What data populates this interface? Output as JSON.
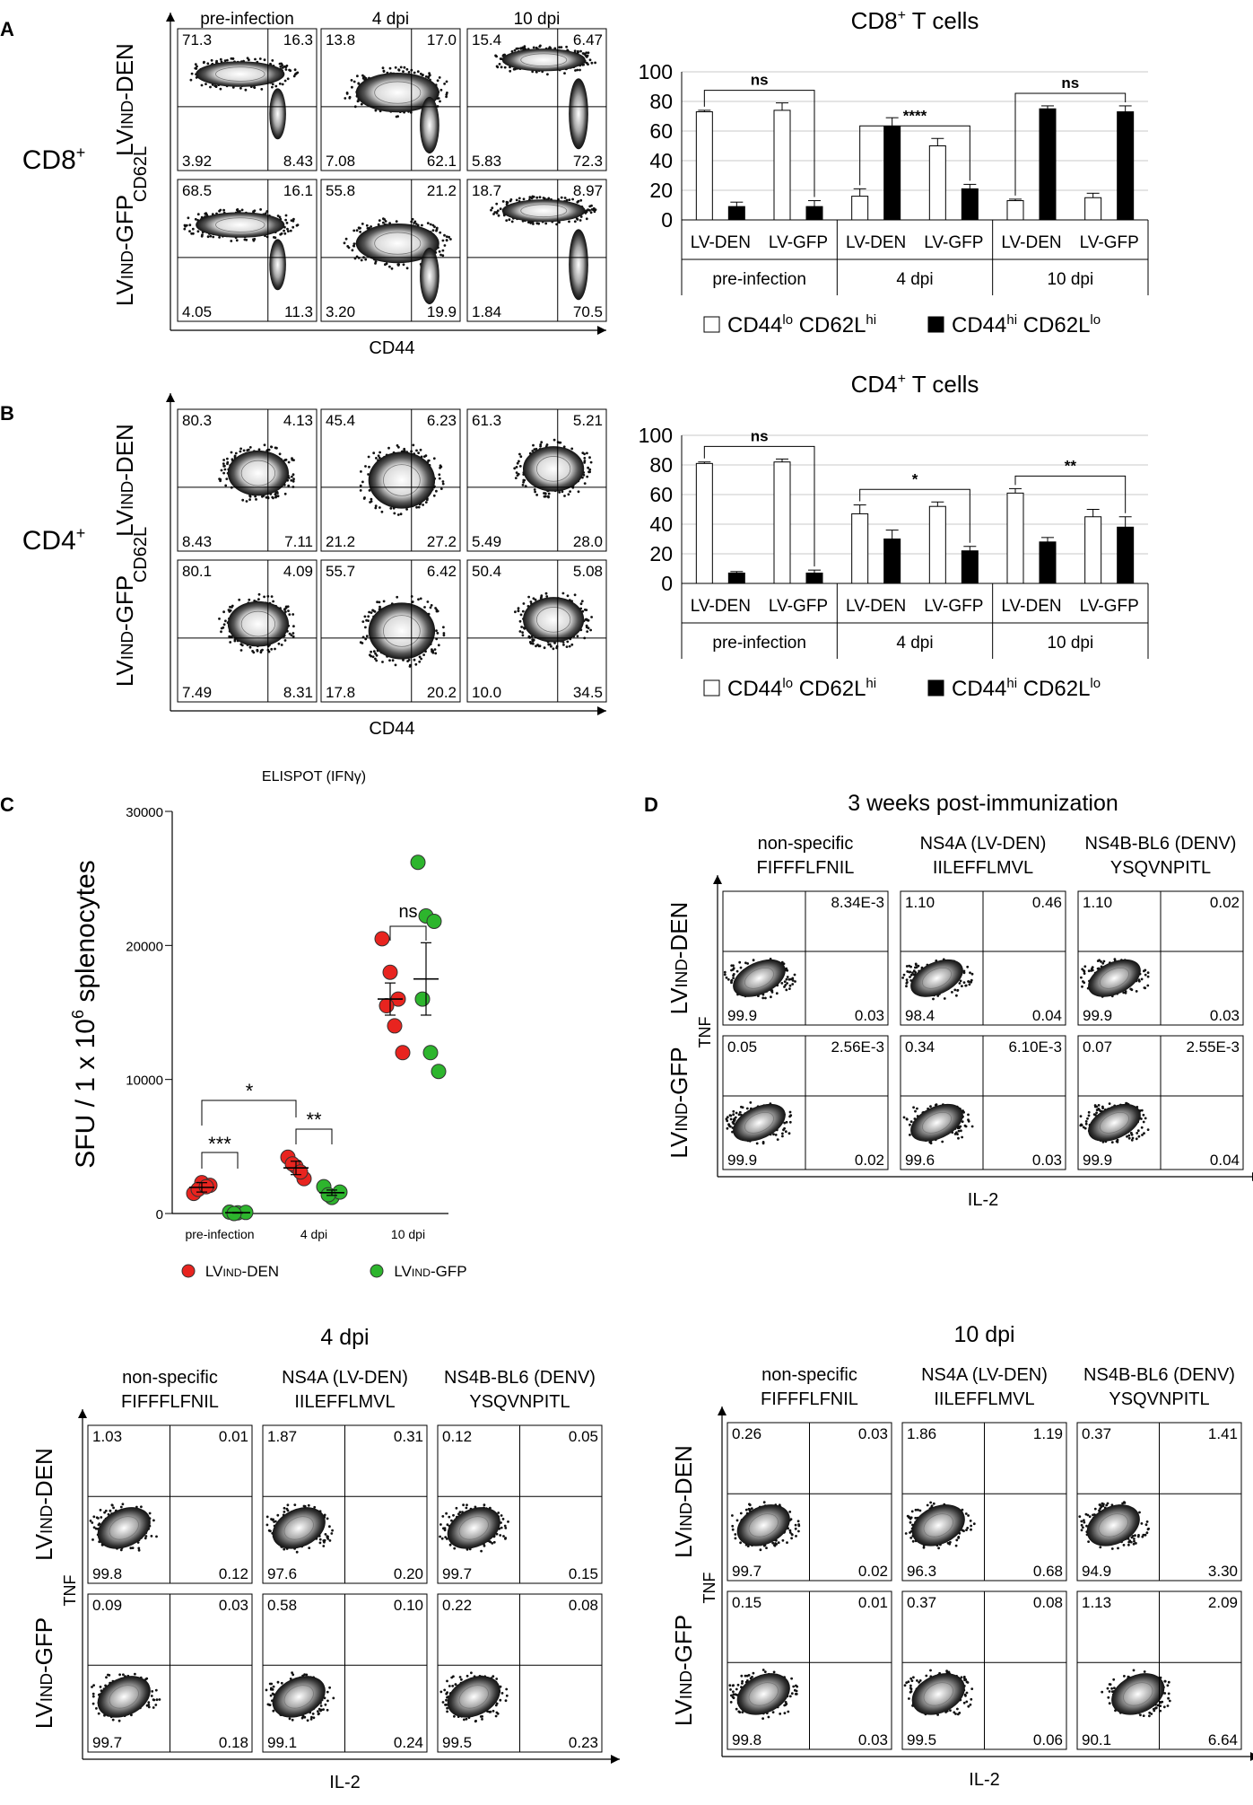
{
  "panel_letters": [
    "A",
    "B",
    "C",
    "D"
  ],
  "flow_common": {
    "cd62l_label": "CD62L",
    "cd44_label": "CD44",
    "tnf_label": "TNF",
    "il2_label": "IL-2",
    "lv_den_label": "LVIND-DEN",
    "lv_gfp_label": "LVIND-GFP"
  },
  "panel_a": {
    "side_label": "CD8+",
    "columns": [
      "pre-infection",
      "4 dpi",
      "10 dpi"
    ],
    "rows": [
      {
        "label": "LVIND-DEN",
        "quads": [
          [
            "71.3",
            "16.3",
            "3.92",
            "8.43"
          ],
          [
            "13.8",
            "17.0",
            "7.08",
            "62.1"
          ],
          [
            "15.4",
            "6.47",
            "5.83",
            "72.3"
          ]
        ]
      },
      {
        "label": "LVIND-GFP",
        "quads": [
          [
            "68.5",
            "16.1",
            "4.05",
            "11.3"
          ],
          [
            "55.8",
            "21.2",
            "3.20",
            "19.9"
          ],
          [
            "18.7",
            "8.97",
            "1.84",
            "70.5"
          ]
        ]
      }
    ]
  },
  "panel_b": {
    "side_label": "CD4+",
    "rows": [
      {
        "label": "LVIND-DEN",
        "quads": [
          [
            "80.3",
            "4.13",
            "8.43",
            "7.11"
          ],
          [
            "45.4",
            "6.23",
            "21.2",
            "27.2"
          ],
          [
            "61.3",
            "5.21",
            "5.49",
            "28.0"
          ]
        ]
      },
      {
        "label": "LVIND-GFP",
        "quads": [
          [
            "80.1",
            "4.09",
            "7.49",
            "8.31"
          ],
          [
            "55.7",
            "6.42",
            "17.8",
            "20.2"
          ],
          [
            "50.4",
            "5.08",
            "10.0",
            "34.5"
          ]
        ]
      }
    ]
  },
  "panel_d_top": {
    "title": "3 weeks post-immunization",
    "columns": [
      [
        "non-specific",
        "FIFFFLFNIL"
      ],
      [
        "NS4A (LV-DEN)",
        "IILEFFLMVL"
      ],
      [
        "NS4B-BL6 (DENV)",
        "YSQVNPITL"
      ]
    ],
    "rows": [
      {
        "label": "LVIND-DEN",
        "quads": [
          [
            "",
            "8.34E-3",
            "99.9",
            "0.03"
          ],
          [
            "1.10",
            "0.46",
            "98.4",
            "0.04"
          ],
          [
            "1.10",
            "0.02",
            "99.9",
            "0.03"
          ]
        ]
      },
      {
        "label": "LVIND-GFP",
        "quads": [
          [
            "0.05",
            "2.56E-3",
            "99.9",
            "0.02"
          ],
          [
            "0.34",
            "6.10E-3",
            "99.6",
            "0.03"
          ],
          [
            "0.07",
            "2.55E-3",
            "99.9",
            "0.04"
          ]
        ]
      }
    ]
  },
  "panel_d_4dpi": {
    "title": "4 dpi",
    "columns": [
      [
        "non-specific",
        "FIFFFLFNIL"
      ],
      [
        "NS4A (LV-DEN)",
        "IILEFFLMVL"
      ],
      [
        "NS4B-BL6 (DENV)",
        "YSQVNPITL"
      ]
    ],
    "rows": [
      {
        "label": "LVIND-DEN",
        "quads": [
          [
            "1.03",
            "0.01",
            "99.8",
            "0.12"
          ],
          [
            "1.87",
            "0.31",
            "97.6",
            "0.20"
          ],
          [
            "0.12",
            "0.05",
            "99.7",
            "0.15"
          ]
        ]
      },
      {
        "label": "LVIND-GFP",
        "quads": [
          [
            "0.09",
            "0.03",
            "99.7",
            "0.18"
          ],
          [
            "0.58",
            "0.10",
            "99.1",
            "0.24"
          ],
          [
            "0.22",
            "0.08",
            "99.5",
            "0.23"
          ]
        ]
      }
    ]
  },
  "panel_d_10dpi": {
    "title": "10 dpi",
    "columns": [
      [
        "non-specific",
        "FIFFFLFNIL"
      ],
      [
        "NS4A (LV-DEN)",
        "IILEFFLMVL"
      ],
      [
        "NS4B-BL6 (DENV)",
        "YSQVNPITL"
      ]
    ],
    "rows": [
      {
        "label": "LVIND-DEN",
        "quads": [
          [
            "0.26",
            "0.03",
            "99.7",
            "0.02"
          ],
          [
            "1.86",
            "1.19",
            "96.3",
            "0.68"
          ],
          [
            "0.37",
            "1.41",
            "94.9",
            "3.30"
          ]
        ]
      },
      {
        "label": "LVIND-GFP",
        "quads": [
          [
            "0.15",
            "0.01",
            "99.8",
            "0.03"
          ],
          [
            "0.37",
            "0.08",
            "99.5",
            "0.06"
          ],
          [
            "1.13",
            "2.09",
            "90.1",
            "6.64"
          ]
        ]
      }
    ]
  },
  "chart_data": [
    {
      "type": "bar",
      "title": "CD8+ T cells",
      "categories": [
        "LV-DEN",
        "LV-GFP",
        "LV-DEN",
        "LV-GFP",
        "LV-DEN",
        "LV-GFP"
      ],
      "groups": [
        "pre-infection",
        "4 dpi",
        "10 dpi"
      ],
      "series": [
        {
          "name": "CD44lo CD62Lhi",
          "values": [
            73,
            74,
            16,
            50,
            13,
            15
          ],
          "errors": [
            1,
            5,
            5,
            5,
            1,
            3
          ],
          "color": "#ffffff"
        },
        {
          "name": "CD44hi CD62Llo",
          "values": [
            9,
            9,
            63,
            21,
            75,
            73
          ],
          "errors": [
            3,
            4,
            6,
            3,
            2,
            4
          ],
          "color": "#000000"
        }
      ],
      "significance": [
        {
          "group": "pre-infection",
          "label": "ns"
        },
        {
          "group": "4 dpi",
          "label": "****"
        },
        {
          "group": "10 dpi",
          "label": "ns"
        }
      ],
      "ylim": [
        0,
        100
      ],
      "yticks": [
        0,
        20,
        40,
        60,
        80,
        100
      ]
    },
    {
      "type": "bar",
      "title": "CD4+ T cells",
      "categories": [
        "LV-DEN",
        "LV-GFP",
        "LV-DEN",
        "LV-GFP",
        "LV-DEN",
        "LV-GFP"
      ],
      "groups": [
        "pre-infection",
        "4 dpi",
        "10 dpi"
      ],
      "series": [
        {
          "name": "CD44lo CD62Lhi",
          "values": [
            81,
            82,
            47,
            52,
            61,
            45
          ],
          "errors": [
            1,
            2,
            6,
            3,
            3,
            5
          ],
          "color": "#ffffff"
        },
        {
          "name": "CD44hi CD62Llo",
          "values": [
            7,
            7,
            30,
            22,
            28,
            38
          ],
          "errors": [
            1,
            2,
            6,
            3,
            3,
            7
          ],
          "color": "#000000"
        }
      ],
      "significance": [
        {
          "group": "pre-infection",
          "label": "ns"
        },
        {
          "group": "4 dpi",
          "label": "*"
        },
        {
          "group": "10 dpi",
          "label": "**"
        }
      ],
      "ylim": [
        0,
        100
      ],
      "yticks": [
        0,
        20,
        40,
        60,
        80,
        100
      ]
    },
    {
      "type": "scatter",
      "title": "ELISPOT (IFNγ)",
      "ylabel": "SFU / 1 x 10^6 splenocytes",
      "categories": [
        "pre-infection",
        "4 dpi",
        "10 dpi"
      ],
      "yticks": [
        0,
        10000,
        20000,
        30000
      ],
      "ylim": [
        0,
        30000
      ],
      "series": [
        {
          "name": "LVIND-DEN",
          "color": "#e8241f",
          "points": [
            [
              0,
              1500
            ],
            [
              0,
              2300
            ],
            [
              0,
              2100
            ],
            [
              0,
              1800
            ],
            [
              0,
              2000
            ],
            [
              1,
              4200
            ],
            [
              1,
              3500
            ],
            [
              1,
              2600
            ],
            [
              1,
              3700
            ],
            [
              1,
              3100
            ],
            [
              2,
              20500
            ],
            [
              2,
              18000
            ],
            [
              2,
              16000
            ],
            [
              2,
              15500
            ],
            [
              2,
              14000
            ],
            [
              2,
              12000
            ]
          ],
          "means": [
            1950,
            3400,
            16000
          ],
          "sems": [
            350,
            500,
            1200
          ]
        },
        {
          "name": "LVIND-GFP",
          "color": "#2db52d",
          "points": [
            [
              0,
              100
            ],
            [
              0,
              50
            ],
            [
              0,
              80
            ],
            [
              0,
              0
            ],
            [
              1,
              2000
            ],
            [
              1,
              1200
            ],
            [
              1,
              1600
            ],
            [
              1,
              1400
            ],
            [
              2,
              26200
            ],
            [
              2,
              22200
            ],
            [
              2,
              21800
            ],
            [
              2,
              16000
            ],
            [
              2,
              12000
            ],
            [
              2,
              10600
            ]
          ],
          "means": [
            60,
            1550,
            17500
          ],
          "sems": [
            30,
            200,
            2700
          ]
        }
      ],
      "significance": [
        {
          "between": "pre-infection DEN vs GFP",
          "label": "***"
        },
        {
          "between": "4 dpi DEN vs GFP",
          "label": "**"
        },
        {
          "between": "pre-infection DEN vs 4 dpi DEN",
          "label": "*"
        },
        {
          "between": "10 dpi DEN vs GFP",
          "label": "ns"
        }
      ]
    }
  ]
}
